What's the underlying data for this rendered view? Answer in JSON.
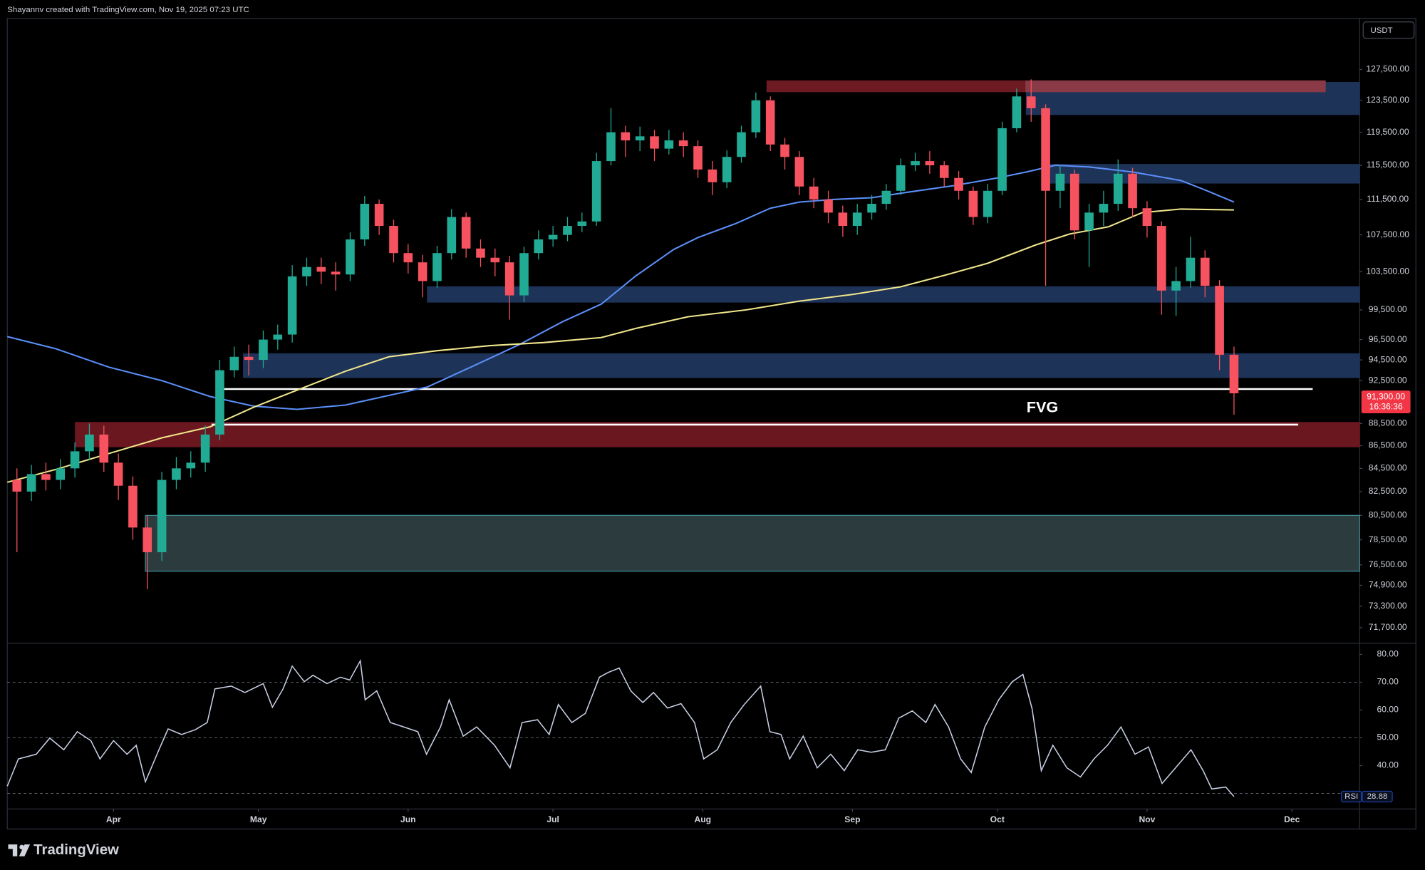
{
  "header": {
    "text": "Shayannv created with TradingView.com, Nov 19, 2025 07:23 UTC"
  },
  "currency": "USDT",
  "footer": {
    "brand": "TradingView"
  },
  "chart_data": [
    {
      "type": "candlestick",
      "up_color": "#22ab94",
      "down_color": "#f7525f",
      "xlim": [
        0,
        280
      ],
      "ylim": [
        70600,
        134400
      ],
      "yscale": "log",
      "yticks": [
        {
          "value": 127500,
          "label": "127,500.00"
        },
        {
          "value": 123500,
          "label": "123,500.00"
        },
        {
          "value": 119500,
          "label": "119,500.00"
        },
        {
          "value": 115500,
          "label": "115,500.00"
        },
        {
          "value": 111500,
          "label": "111,500.00"
        },
        {
          "value": 107500,
          "label": "107,500.00"
        },
        {
          "value": 103500,
          "label": "103,500.00"
        },
        {
          "value": 99500,
          "label": "99,500.00"
        },
        {
          "value": 96500,
          "label": "96,500.00"
        },
        {
          "value": 94500,
          "label": "94,500.00"
        },
        {
          "value": 92500,
          "label": "92,500.00"
        },
        {
          "value": 88500,
          "label": "88,500.00"
        },
        {
          "value": 86500,
          "label": "86,500.00"
        },
        {
          "value": 84500,
          "label": "84,500.00"
        },
        {
          "value": 82500,
          "label": "82,500.00"
        },
        {
          "value": 80500,
          "label": "80,500.00"
        },
        {
          "value": 78500,
          "label": "78,500.00"
        },
        {
          "value": 76500,
          "label": "76,500.00"
        },
        {
          "value": 74900,
          "label": "74,900.00"
        },
        {
          "value": 73300,
          "label": "73,300.00"
        },
        {
          "value": 71700,
          "label": "71,700.00"
        }
      ],
      "xticks": [
        {
          "value": 22,
          "label": "Apr"
        },
        {
          "value": 52,
          "label": "May"
        },
        {
          "value": 83,
          "label": "Jun"
        },
        {
          "value": 113,
          "label": "Jul"
        },
        {
          "value": 144,
          "label": "Aug"
        },
        {
          "value": 175,
          "label": "Sep"
        },
        {
          "value": 205,
          "label": "Oct"
        },
        {
          "value": 236,
          "label": "Nov"
        },
        {
          "value": 266,
          "label": "Dec"
        }
      ],
      "x": [
        2,
        5,
        8,
        11,
        14,
        17,
        20,
        23,
        26,
        29,
        32,
        35,
        38,
        41,
        44,
        47,
        50,
        53,
        56,
        59,
        62,
        65,
        68,
        71,
        74,
        77,
        80,
        83,
        86,
        89,
        92,
        95,
        98,
        101,
        104,
        107,
        110,
        113,
        116,
        119,
        122,
        125,
        128,
        131,
        134,
        137,
        140,
        143,
        146,
        149,
        152,
        155,
        158,
        161,
        164,
        167,
        170,
        173,
        176,
        179,
        182,
        185,
        188,
        191,
        194,
        197,
        200,
        203,
        206,
        209,
        212,
        215,
        218,
        221,
        224,
        227,
        230,
        233,
        236,
        239,
        242,
        245,
        248,
        251,
        254
      ],
      "open": [
        83500,
        82500,
        84000,
        83500,
        84500,
        86000,
        87500,
        85000,
        83000,
        79500,
        77500,
        83500,
        84500,
        85000,
        87500,
        93500,
        94800,
        94500,
        96500,
        97000,
        103000,
        104000,
        103500,
        103200,
        107000,
        111000,
        108500,
        105500,
        104500,
        102500,
        105500,
        109500,
        106000,
        105000,
        104500,
        101000,
        105500,
        107000,
        107500,
        108500,
        109000,
        116000,
        119500,
        118500,
        119000,
        117500,
        118500,
        117800,
        115000,
        113500,
        116500,
        119500,
        123500,
        118000,
        116500,
        113000,
        111500,
        110000,
        108500,
        110000,
        111000,
        112500,
        115500,
        116000,
        115500,
        114000,
        112500,
        109500,
        112500,
        120000,
        124000,
        122500,
        112500,
        114500,
        108000,
        110000,
        111000,
        114500,
        110500,
        108500,
        101500,
        102500,
        105000,
        102000,
        95000
      ],
      "high": [
        84500,
        84800,
        85000,
        85300,
        86800,
        88500,
        88300,
        85800,
        83800,
        80500,
        84200,
        85500,
        86000,
        88300,
        94500,
        95800,
        96000,
        97400,
        98000,
        104200,
        105000,
        105000,
        104500,
        107800,
        111900,
        111500,
        109200,
        106500,
        105300,
        106300,
        110400,
        110000,
        107000,
        106000,
        105200,
        106200,
        108000,
        108500,
        109500,
        110000,
        117000,
        122500,
        120300,
        120200,
        119800,
        119800,
        119500,
        118500,
        116000,
        117300,
        120300,
        124500,
        124000,
        118800,
        117200,
        114000,
        112500,
        110800,
        111000,
        112000,
        113300,
        116300,
        117000,
        117200,
        116000,
        114800,
        113000,
        113300,
        120800,
        125000,
        126200,
        123000,
        115500,
        115000,
        111000,
        112500,
        116200,
        115200,
        111300,
        109000,
        104000,
        107300,
        105800,
        102600,
        95800
      ],
      "low": [
        77500,
        81700,
        82600,
        82700,
        83700,
        85200,
        84200,
        81800,
        78500,
        74600,
        76800,
        82700,
        83700,
        84200,
        87000,
        92800,
        93000,
        93700,
        95500,
        96200,
        102000,
        102200,
        101500,
        102500,
        106300,
        107500,
        104500,
        103300,
        100800,
        101800,
        104800,
        105000,
        104000,
        103000,
        98500,
        100300,
        104800,
        106200,
        106800,
        107800,
        108500,
        115500,
        116500,
        117200,
        116000,
        116800,
        116500,
        114000,
        112000,
        112800,
        115800,
        118800,
        117200,
        115000,
        112000,
        110500,
        108800,
        107300,
        107500,
        109200,
        110300,
        112000,
        114800,
        114500,
        113000,
        111500,
        108600,
        108800,
        112000,
        119500,
        120800,
        102000,
        110500,
        107000,
        104000,
        108500,
        110200,
        109500,
        107200,
        99000,
        98900,
        101800,
        100800,
        93500,
        89300
      ],
      "close": [
        82500,
        84000,
        83500,
        84500,
        86000,
        87500,
        85000,
        83000,
        79500,
        77500,
        83500,
        84500,
        85000,
        87500,
        93500,
        94800,
        94500,
        96500,
        97000,
        103000,
        104000,
        103500,
        103200,
        107000,
        111000,
        108500,
        105500,
        104500,
        102500,
        105500,
        109500,
        106000,
        105000,
        104500,
        101000,
        105500,
        107000,
        107500,
        108500,
        109000,
        116000,
        119500,
        118500,
        119000,
        117500,
        118500,
        117800,
        115000,
        113500,
        116500,
        119500,
        123500,
        118000,
        116500,
        113000,
        111500,
        110000,
        108500,
        110000,
        111000,
        112500,
        115500,
        116000,
        115500,
        114000,
        112500,
        109500,
        112500,
        120000,
        124000,
        122500,
        112500,
        114500,
        108000,
        110000,
        111000,
        114500,
        110500,
        108500,
        101500,
        102500,
        105000,
        102000,
        95000,
        91300
      ],
      "moving_averages": [
        {
          "color": "#5b8ff9",
          "x": [
            0,
            10,
            21,
            32,
            42,
            51,
            60,
            70,
            79,
            87,
            96,
            106,
            115,
            123,
            130,
            138,
            143,
            151,
            158,
            164,
            171,
            179,
            186,
            196,
            205,
            211,
            217,
            224,
            233,
            243,
            248,
            254
          ],
          "values": [
            96800,
            95600,
            93800,
            92500,
            91000,
            90100,
            89800,
            90200,
            91100,
            91900,
            93800,
            96000,
            98300,
            100100,
            103000,
            105900,
            107200,
            108800,
            110500,
            111200,
            111500,
            111700,
            112300,
            113100,
            114000,
            114700,
            115500,
            115300,
            114700,
            113700,
            112600,
            111200
          ]
        },
        {
          "color": "#f0e68c",
          "x": [
            0,
            10,
            21,
            32,
            42,
            51,
            60,
            70,
            79,
            89,
            100,
            111,
            123,
            130,
            141,
            153,
            164,
            175,
            185,
            194,
            203,
            213,
            220,
            228,
            235,
            243,
            254
          ],
          "values": [
            83300,
            84400,
            85800,
            87200,
            88200,
            90000,
            91600,
            93400,
            94800,
            95400,
            95900,
            96200,
            96700,
            97600,
            98800,
            99500,
            100400,
            101100,
            101900,
            103100,
            104400,
            106400,
            107600,
            108400,
            110000,
            110400,
            110300
          ]
        }
      ],
      "zones": [
        {
          "x": [
            211,
            280
          ],
          "y": [
            121700,
            125800
          ],
          "color": "#1e3358",
          "border": "#1e3358"
        },
        {
          "x": [
            157.3,
            210.9
          ],
          "y": [
            124600,
            126000
          ],
          "color": "#6e1a22",
          "border": "#6e1a22"
        },
        {
          "x": [
            210.9,
            272.9
          ],
          "y": [
            124600,
            126000
          ],
          "color": "#8a3a47",
          "border": "#8a3a47"
        },
        {
          "x": [
            214.3,
            280
          ],
          "y": [
            113400,
            115600
          ],
          "color": "#1e3358",
          "border": "#1e3358"
        },
        {
          "x": [
            87,
            280
          ],
          "y": [
            100300,
            101900
          ],
          "color": "#1e3358",
          "border": "#1e3358"
        },
        {
          "x": [
            48.9,
            280
          ],
          "y": [
            92800,
            95100
          ],
          "color": "#1e3358",
          "border": "#1e3358"
        },
        {
          "x": [
            14.1,
            280
          ],
          "y": [
            86400,
            88600
          ],
          "color": "#6b1720",
          "border": "#6b1720"
        },
        {
          "x": [
            28.6,
            280
          ],
          "y": [
            76000,
            80500
          ],
          "color": "#2c3b3e",
          "border": "#3c8d93"
        }
      ],
      "levels": [
        {
          "x": [
            44.2,
            270.3
          ],
          "value": 91700,
          "color": "#ffffff"
        },
        {
          "x": [
            42.3,
            267.3
          ],
          "value": 88400,
          "color": "#ffffff"
        }
      ],
      "annotation": "FVG",
      "last_price": {
        "value": 91300,
        "label": "91,300.00",
        "countdown": "16:36:36",
        "color": "#f23645"
      }
    },
    {
      "type": "line",
      "name": "RSI",
      "color": "#c9d1e6",
      "xlim": [
        0,
        280
      ],
      "ylim": [
        24.4,
        83.9
      ],
      "yticks": [
        {
          "value": 80,
          "label": "80.00"
        },
        {
          "value": 70,
          "label": "70.00"
        },
        {
          "value": 60,
          "label": "60.00"
        },
        {
          "value": 50,
          "label": "50.00"
        },
        {
          "value": 40,
          "label": "40.00"
        }
      ],
      "bands": [
        70,
        50,
        30
      ],
      "x": [
        0,
        2.3,
        6.0,
        8.8,
        11.7,
        14.5,
        17.3,
        19.2,
        22.0,
        24.8,
        26.7,
        28.6,
        31.4,
        33.3,
        36.1,
        38.9,
        41.4,
        43.0,
        46.4,
        49.2,
        53.0,
        54.9,
        57.1,
        59.0,
        61.5,
        63.3,
        66.2,
        69.0,
        70.9,
        73.1,
        74.1,
        76.5,
        79.3,
        82.1,
        85.0,
        86.8,
        89.7,
        91.5,
        94.4,
        97.2,
        100.9,
        104.1,
        106.6,
        109.8,
        112.2,
        114.1,
        116.9,
        119.7,
        122.6,
        124.4,
        126.7,
        129.1,
        131.6,
        133.8,
        136.7,
        139.5,
        142.3,
        144.2,
        147.0,
        149.8,
        152.6,
        156.0,
        157.9,
        160.2,
        162.0,
        164.8,
        167.7,
        170.5,
        173.3,
        176.1,
        178.9,
        181.8,
        184.6,
        187.4,
        190.2,
        192.1,
        194.9,
        197.4,
        199.6,
        202.4,
        205.3,
        208.1,
        210.3,
        212.2,
        214.1,
        216.5,
        219.4,
        222.2,
        225.0,
        227.8,
        230.6,
        233.5,
        236.3,
        239.1,
        241.9,
        245.1,
        247.6,
        249.4,
        252.3,
        254
      ],
      "values": [
        32.6,
        42.4,
        44.1,
        49.9,
        45.7,
        52.2,
        49,
        42.4,
        49,
        44.1,
        47.3,
        34.2,
        45.7,
        53.2,
        51.2,
        52.9,
        55.5,
        67.6,
        68.6,
        66.3,
        69.5,
        61,
        67.6,
        75.8,
        70.2,
        72.5,
        69.5,
        71.8,
        70.8,
        77.7,
        63.7,
        66.9,
        55.5,
        53.9,
        52.2,
        44.1,
        53.9,
        63.7,
        50.6,
        53.9,
        47.3,
        39.2,
        55.5,
        56.5,
        51.2,
        62,
        55.5,
        58.8,
        71.8,
        73.5,
        75.1,
        66.9,
        62.7,
        66.3,
        60.7,
        62.3,
        55.5,
        42.4,
        45.7,
        55.5,
        62,
        68.6,
        52.2,
        51.2,
        42.4,
        50.6,
        39.2,
        44.1,
        38.2,
        45.7,
        44.8,
        45.7,
        57.1,
        59.7,
        55.5,
        62,
        53.9,
        42.4,
        37.5,
        53.9,
        63.7,
        70.2,
        72.8,
        60.4,
        38.2,
        47.3,
        39.2,
        35.9,
        42.4,
        47.3,
        53.9,
        44.1,
        46.7,
        33.6,
        39.2,
        45.7,
        38.2,
        31.6,
        32.3,
        28.88
      ]
    }
  ]
}
